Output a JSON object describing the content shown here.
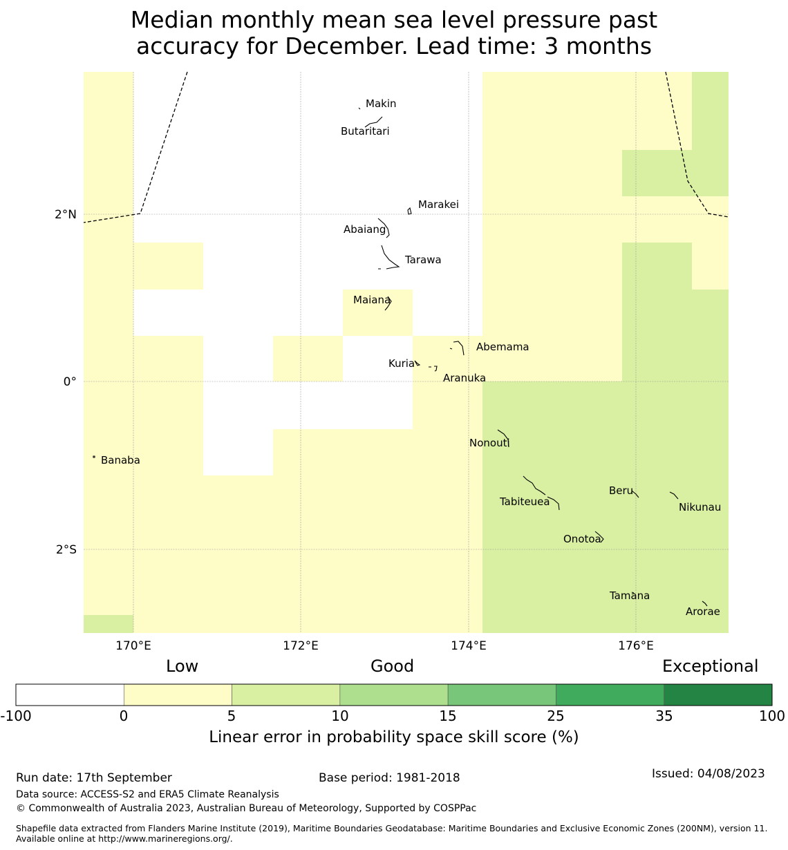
{
  "title": {
    "line1": "Median monthly mean sea level pressure past",
    "line2": "accuracy for December. Lead time: 3 months"
  },
  "map": {
    "lat_labels": [
      "2°N",
      "0°",
      "2°S"
    ],
    "lon_labels": [
      "170°E",
      "172°E",
      "174°E",
      "176°E"
    ],
    "islands": [
      "Makin",
      "Butaritari",
      "Marakei",
      "Abaiang",
      "Tarawa",
      "Maiana",
      "Abemama",
      "Kuria",
      "Aranuka",
      "Nonouti",
      "Banaba",
      "Tabiteuea",
      "Beru",
      "Nikunau",
      "Onotoa",
      "Tamana",
      "Arorae"
    ]
  },
  "colorbar": {
    "category_labels": [
      "Low",
      "Good",
      "Exceptional"
    ],
    "ticks": [
      "-100",
      "0",
      "5",
      "10",
      "15",
      "25",
      "35",
      "100"
    ],
    "colors": [
      "#ffffff",
      "#fefdc8",
      "#d9efa2",
      "#addf8e",
      "#78c679",
      "#41ab5d",
      "#238443"
    ],
    "title": "Linear error in probability space skill score (%)"
  },
  "footer": {
    "run_date": "Run date: 17th September",
    "base_period": "Base period: 1981-2018",
    "issued": "Issued: 04/08/2023",
    "data_source": "Data source: ACCESS-S2 and ERA5 Climate Reanalysis",
    "copyright": "© Commonwealth of Australia 2023, Australian Bureau of Meteorology, Supported by COSPPac",
    "shapefile": "Shapefile data extracted from Flanders Marine Institute (2019), Maritime Boundaries Geodatabase: Maritime Boundaries and Exclusive Economic Zones (200NM), version 11. Available online at http://www.marineregions.org/."
  }
}
